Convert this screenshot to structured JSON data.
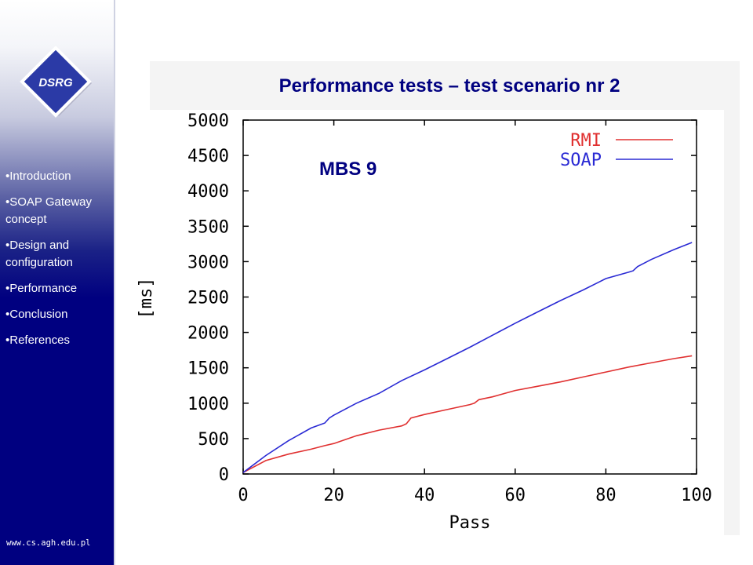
{
  "sidebar": {
    "logo_text": "DSRG",
    "items": [
      {
        "label": "•Introduction"
      },
      {
        "label": "•SOAP Gateway concept"
      },
      {
        "label": "•Design and configuration"
      },
      {
        "label": "•Performance",
        "active": true
      },
      {
        "label": "•Conclusion"
      },
      {
        "label": "•References"
      }
    ],
    "footer_url": "www.cs.agh.edu.pl"
  },
  "slide": {
    "title": "Performance tests – test scenario nr 2",
    "chart_label": "MBS 9"
  },
  "colors": {
    "sidebar_navy": "#000080",
    "title_navy": "#000080",
    "rmi_red": "#e03030",
    "soap_blue": "#2a2ad4"
  },
  "chart_data": {
    "type": "line",
    "title": "",
    "xlabel": "Pass",
    "ylabel": "[ms]",
    "xlim": [
      0,
      100
    ],
    "ylim": [
      0,
      5000
    ],
    "xticks": [
      0,
      20,
      40,
      60,
      80,
      100
    ],
    "yticks": [
      0,
      500,
      1000,
      1500,
      2000,
      2500,
      3000,
      3500,
      4000,
      4500,
      5000
    ],
    "grid": false,
    "legend": "top-right",
    "series": [
      {
        "name": "RMI",
        "color": "#e03030",
        "x": [
          0,
          5,
          10,
          15,
          18,
          20,
          25,
          30,
          35,
          36,
          37,
          40,
          45,
          50,
          51,
          52,
          55,
          60,
          65,
          70,
          75,
          80,
          85,
          90,
          95,
          99
        ],
        "y": [
          20,
          190,
          280,
          350,
          400,
          430,
          540,
          620,
          680,
          710,
          790,
          840,
          910,
          980,
          1000,
          1050,
          1090,
          1180,
          1240,
          1300,
          1370,
          1440,
          1510,
          1570,
          1630,
          1670
        ]
      },
      {
        "name": "SOAP",
        "color": "#2a2ad4",
        "x": [
          0,
          5,
          10,
          15,
          18,
          19,
          20,
          25,
          30,
          35,
          40,
          45,
          50,
          55,
          60,
          65,
          70,
          75,
          80,
          85,
          86,
          87,
          90,
          95,
          99
        ],
        "y": [
          20,
          260,
          470,
          650,
          720,
          790,
          830,
          1000,
          1140,
          1320,
          1470,
          1630,
          1790,
          1960,
          2130,
          2290,
          2450,
          2600,
          2760,
          2850,
          2870,
          2930,
          3030,
          3170,
          3270
        ]
      }
    ]
  }
}
